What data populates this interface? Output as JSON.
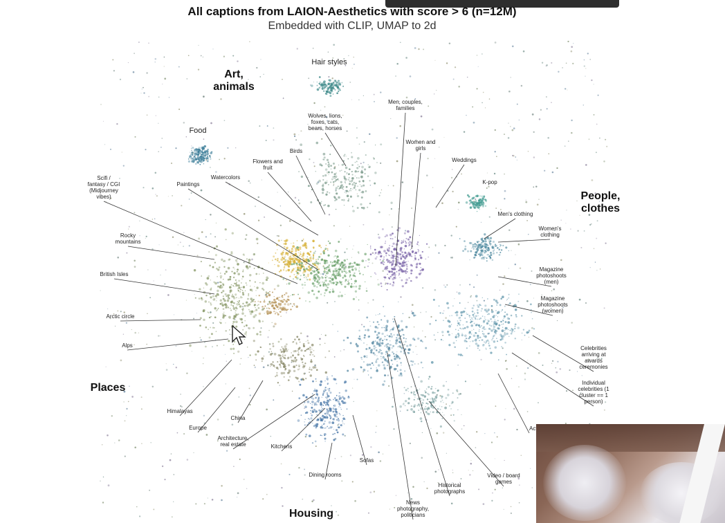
{
  "chart_data": {
    "type": "scatter",
    "title": "All captions from LAION-Aesthetics with score > 6 (n=12M)",
    "subtitle": "Embedded with CLIP, UMAP to 2d",
    "grid": false,
    "legend": "none",
    "clusters": [
      {
        "label": "Food",
        "color": "#3f7f9a"
      },
      {
        "label": "Hair styles",
        "color": "#3f8a8a"
      },
      {
        "label": "Paintings",
        "color": "#d7b23a"
      },
      {
        "label": "Men, couples, families",
        "color": "#7b65a8"
      },
      {
        "label": "K-pop",
        "color": "#3f9a8f"
      },
      {
        "label": "Individual celebrities (1 cluster == 1 person)",
        "color": "#6a9cb0"
      },
      {
        "label": "Architecture, real estate",
        "color": "#4a78a8"
      }
    ],
    "region_labels": [
      "Art, animals",
      "People, clothes",
      "Places",
      "Housing"
    ],
    "annotations": [
      "Hair styles",
      "Food",
      "Wolves, lions, foxes, cats, bears, horses",
      "Men, couples, families",
      "Women and girls",
      "Weddings",
      "Birds",
      "Flowers and fruit",
      "Watercolors",
      "Scifi / fantasy / CGI (Midjourney vibes)",
      "Paintings",
      "K-pop",
      "Men's clothing",
      "Women's clothing",
      "Rocky mountains",
      "British Isles",
      "Magazine photoshoots (men)",
      "Magazine photoshoots (women)",
      "Arctic circle",
      "Alps",
      "Celebrities arriving at awards ceremonies",
      "Individual celebrities (1 cluster == 1 person)",
      "Himalayas",
      "China",
      "Europe",
      "Architecture, real estate",
      "Kitchens",
      "Sofas",
      "Dining rooms",
      "Historical photographs",
      "Video / board games",
      "News photography, politicians",
      "Actr... the..."
    ]
  },
  "overlay": {
    "cursor": "pointer-cursor-icon",
    "webcam": "webcam-thumbnail"
  }
}
